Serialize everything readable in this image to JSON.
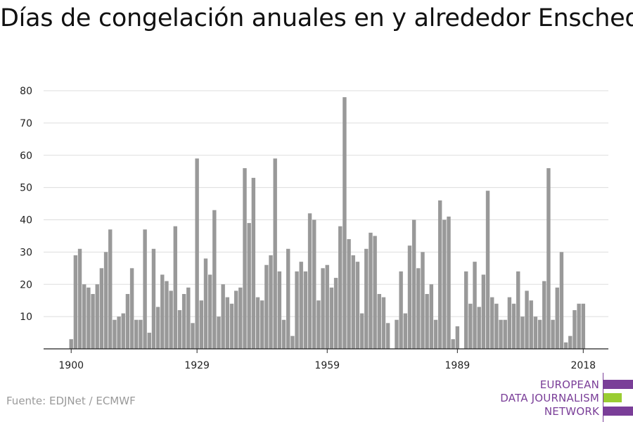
{
  "title": "Días de congelación anuales en y alrededor Enschede",
  "source": "Fuente: EDJNet / ECMWF",
  "logo": {
    "line1": "EUROPEAN",
    "line2": "DATA JOURNALISM",
    "line3": "NETWORK",
    "colors": {
      "purple": "#7a3e98",
      "green": "#9acd32"
    }
  },
  "colors": {
    "bar": "#999999",
    "grid": "#dddddd",
    "axis": "#222222"
  },
  "chart_data": {
    "type": "bar",
    "title": "Días de congelación anuales en y alrededor Enschede",
    "xlabel": "",
    "ylabel": "",
    "x_tick_labels": [
      "1900",
      "1929",
      "1959",
      "1989",
      "2018"
    ],
    "y_ticks": [
      10,
      20,
      30,
      40,
      50,
      60,
      70,
      80
    ],
    "ylim": [
      0,
      80
    ],
    "grid": true,
    "x_start_year": 1900,
    "categories": [
      1900,
      1901,
      1902,
      1903,
      1904,
      1905,
      1906,
      1907,
      1908,
      1909,
      1910,
      1911,
      1912,
      1913,
      1914,
      1915,
      1916,
      1917,
      1918,
      1919,
      1920,
      1921,
      1922,
      1923,
      1924,
      1925,
      1926,
      1927,
      1928,
      1929,
      1930,
      1931,
      1932,
      1933,
      1934,
      1935,
      1936,
      1937,
      1938,
      1939,
      1940,
      1941,
      1942,
      1943,
      1944,
      1945,
      1946,
      1947,
      1948,
      1949,
      1950,
      1951,
      1952,
      1953,
      1954,
      1955,
      1956,
      1957,
      1958,
      1959,
      1960,
      1961,
      1962,
      1963,
      1964,
      1965,
      1966,
      1967,
      1968,
      1969,
      1970,
      1971,
      1972,
      1973,
      1974,
      1975,
      1976,
      1977,
      1978,
      1979,
      1980,
      1981,
      1982,
      1983,
      1984,
      1985,
      1986,
      1987,
      1988,
      1989,
      1990,
      1991,
      1992,
      1993,
      1994,
      1995,
      1996,
      1997,
      1998,
      1999,
      2000,
      2001,
      2002,
      2003,
      2004,
      2005,
      2006,
      2007,
      2008,
      2009,
      2010,
      2011,
      2012,
      2013,
      2014,
      2015,
      2016,
      2017,
      2018
    ],
    "values": [
      3,
      29,
      31,
      20,
      19,
      17,
      20,
      25,
      30,
      37,
      9,
      10,
      11,
      17,
      25,
      9,
      9,
      37,
      5,
      31,
      13,
      23,
      21,
      18,
      38,
      12,
      17,
      19,
      8,
      59,
      15,
      28,
      23,
      43,
      10,
      20,
      16,
      14,
      18,
      19,
      56,
      39,
      53,
      16,
      15,
      26,
      29,
      59,
      24,
      9,
      31,
      4,
      24,
      27,
      24,
      42,
      40,
      15,
      25,
      26,
      19,
      22,
      38,
      78,
      34,
      29,
      27,
      11,
      31,
      36,
      35,
      17,
      16,
      8,
      0,
      9,
      24,
      11,
      32,
      40,
      25,
      30,
      17,
      20,
      9,
      46,
      40,
      41,
      3,
      7,
      0,
      24,
      14,
      27,
      13,
      23,
      49,
      16,
      14,
      9,
      9,
      16,
      14,
      24,
      10,
      18,
      15,
      10,
      9,
      21,
      56,
      9,
      19,
      30,
      2,
      4,
      12,
      14,
      14
    ]
  }
}
